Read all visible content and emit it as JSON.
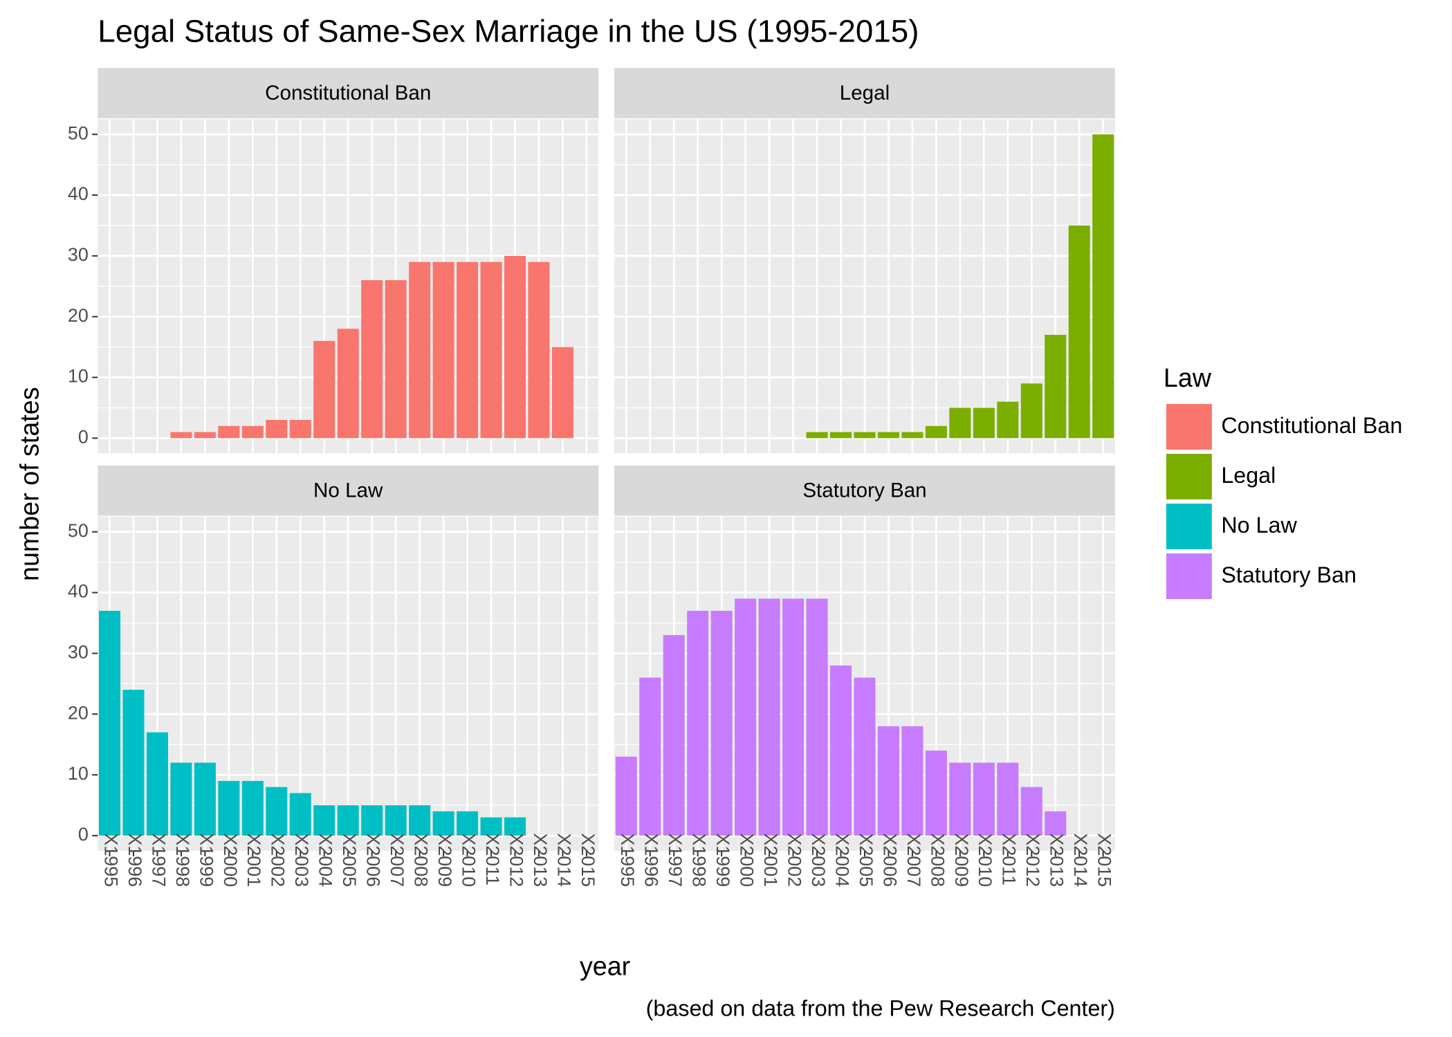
{
  "chart_data": {
    "type": "bar",
    "title": "Legal Status of Same-Sex Marriage in the US (1995-2015)",
    "x_label": "year",
    "y_label": "number of states",
    "caption": "(based on data from the Pew Research Center)",
    "legend_title": "Law",
    "categories": [
      "X1995",
      "X1996",
      "X1997",
      "X1998",
      "X1999",
      "X2000",
      "X2001",
      "X2002",
      "X2003",
      "X2004",
      "X2005",
      "X2006",
      "X2007",
      "X2008",
      "X2009",
      "X2010",
      "X2011",
      "X2012",
      "X2013",
      "X2014",
      "X2015"
    ],
    "series": [
      {
        "name": "Constitutional Ban",
        "color": "#f8766d",
        "values": [
          0,
          0,
          0,
          1,
          1,
          2,
          2,
          3,
          3,
          16,
          18,
          26,
          26,
          29,
          29,
          29,
          29,
          30,
          29,
          15,
          0
        ]
      },
      {
        "name": "Legal",
        "color": "#7cae00",
        "values": [
          0,
          0,
          0,
          0,
          0,
          0,
          0,
          0,
          1,
          1,
          1,
          1,
          1,
          2,
          5,
          5,
          6,
          9,
          17,
          35,
          50
        ]
      },
      {
        "name": "No Law",
        "color": "#00bfc4",
        "values": [
          37,
          24,
          17,
          12,
          12,
          9,
          9,
          8,
          7,
          5,
          5,
          5,
          5,
          5,
          4,
          4,
          3,
          3,
          0,
          0,
          0
        ]
      },
      {
        "name": "Statutory Ban",
        "color": "#c77cff",
        "values": [
          13,
          26,
          33,
          37,
          37,
          39,
          39,
          39,
          39,
          28,
          26,
          18,
          18,
          14,
          12,
          12,
          12,
          8,
          4,
          0,
          0
        ]
      }
    ],
    "ylim": [
      -2.5,
      52.5
    ],
    "yticks": [
      0,
      10,
      20,
      30,
      40,
      50
    ],
    "grid": true
  }
}
